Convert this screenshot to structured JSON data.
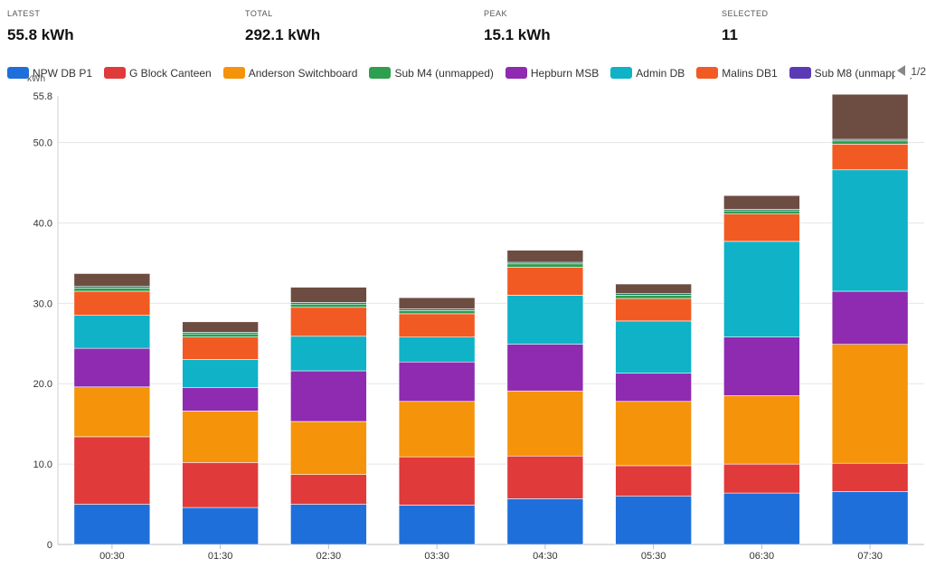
{
  "stats": [
    {
      "label": "LATEST",
      "value": "55.8 kWh"
    },
    {
      "label": "TOTAL",
      "value": "292.1 kWh"
    },
    {
      "label": "PEAK",
      "value": "15.1 kWh"
    },
    {
      "label": "SELECTED",
      "value": "11"
    }
  ],
  "legend": {
    "pager_text": "1/2",
    "items": [
      {
        "name": "NPW DB P1",
        "color": "#1f6fdb"
      },
      {
        "name": "G Block Canteen",
        "color": "#e03a3a"
      },
      {
        "name": "Anderson Switchboard",
        "color": "#f5930b"
      },
      {
        "name": "Sub M4 (unmapped)",
        "color": "#2e9e4f"
      },
      {
        "name": "Hepburn MSB",
        "color": "#8e2bb0"
      },
      {
        "name": "Admin DB",
        "color": "#0fb2c7"
      },
      {
        "name": "Malins DB1",
        "color": "#f25a23"
      },
      {
        "name": "Sub M8 (unmapped)",
        "color": "#5b3bb5"
      }
    ]
  },
  "chart_data": {
    "type": "bar",
    "stacked": true,
    "yunit": "kWh",
    "ylim": [
      0,
      55.8
    ],
    "yticks": [
      "0",
      "10.0",
      "20.0",
      "30.0",
      "40.0",
      "50.0",
      "55.8"
    ],
    "categories": [
      "00:30",
      "01:30",
      "02:30",
      "03:30",
      "04:30",
      "05:30",
      "06:30",
      "07:30"
    ],
    "series": [
      {
        "name": "NPW DB P1",
        "color": "#1f6fdb",
        "values": [
          5.0,
          4.6,
          5.0,
          4.9,
          5.7,
          6.0,
          6.4,
          6.6
        ]
      },
      {
        "name": "G Block Canteen",
        "color": "#e03a3a",
        "values": [
          8.4,
          5.6,
          3.7,
          6.0,
          5.3,
          3.8,
          3.6,
          3.5
        ]
      },
      {
        "name": "Anderson Switchboard",
        "color": "#f5930b",
        "values": [
          6.2,
          6.4,
          6.6,
          6.9,
          8.1,
          8.0,
          8.5,
          14.8
        ]
      },
      {
        "name": "Hepburn MSB",
        "color": "#8e2bb0",
        "values": [
          4.8,
          2.9,
          6.3,
          4.9,
          5.8,
          3.5,
          7.3,
          6.6
        ]
      },
      {
        "name": "Admin DB",
        "color": "#0fb2c7",
        "values": [
          4.1,
          3.5,
          4.3,
          3.1,
          6.1,
          6.5,
          11.9,
          15.1
        ]
      },
      {
        "name": "Malins DB1",
        "color": "#f25a23",
        "values": [
          3.0,
          2.8,
          3.6,
          2.9,
          3.5,
          2.8,
          3.4,
          3.2
        ]
      },
      {
        "name": "Sub M4 (unmapped)",
        "color": "#2e9e4f",
        "values": [
          0.4,
          0.4,
          0.4,
          0.4,
          0.4,
          0.4,
          0.4,
          0.4
        ]
      },
      {
        "name": "",
        "color": "#127a5f",
        "values": [
          0.2,
          0.2,
          0.2,
          0.2,
          0.2,
          0.2,
          0.2,
          0.2
        ]
      },
      {
        "name": "",
        "color": "#6d4c41",
        "values": [
          1.6,
          1.3,
          1.9,
          1.4,
          1.5,
          1.2,
          1.7,
          5.6
        ]
      }
    ]
  }
}
